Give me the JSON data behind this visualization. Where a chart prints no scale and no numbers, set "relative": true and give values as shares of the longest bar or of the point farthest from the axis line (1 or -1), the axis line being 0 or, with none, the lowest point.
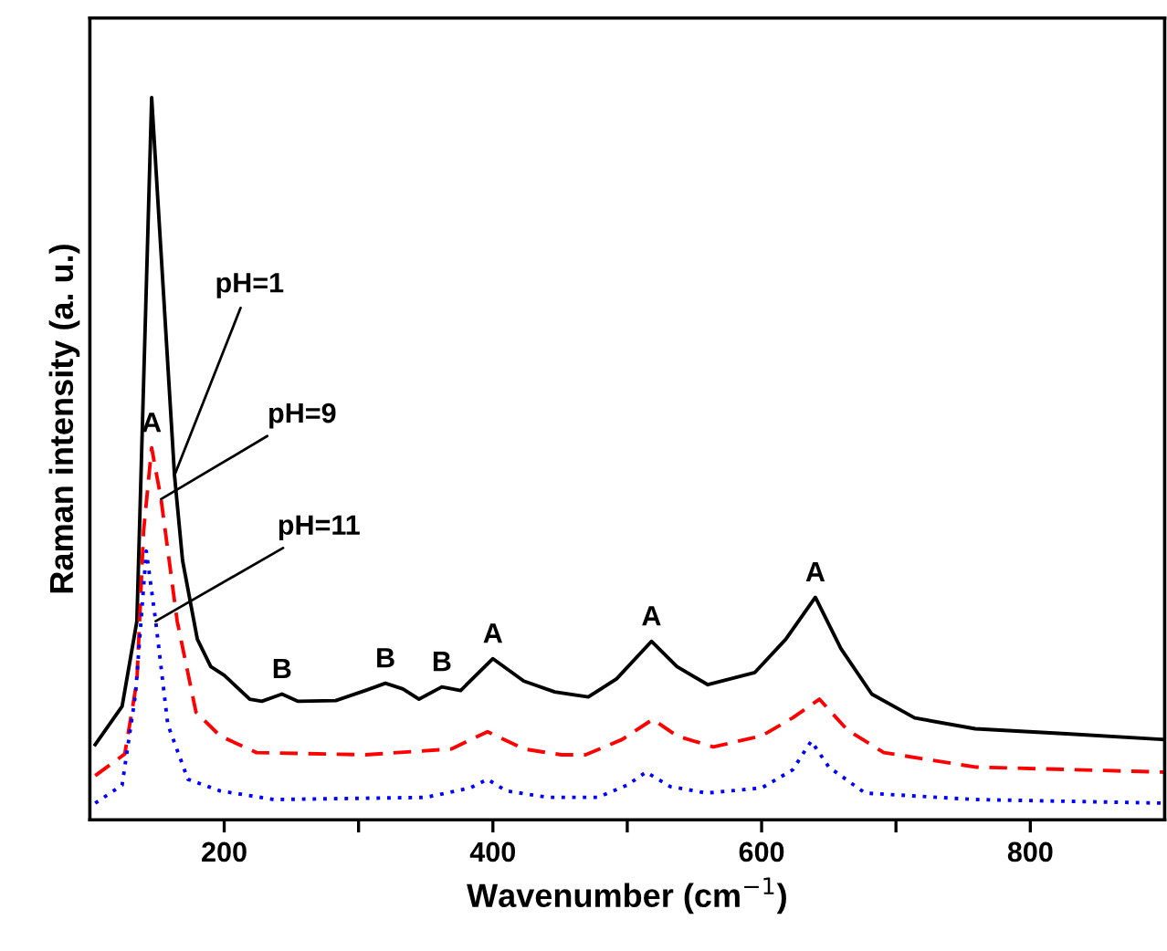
{
  "chart_data": {
    "type": "line",
    "relative": true,
    "xlabel": "Wavenumber (cm$^{−1}$)",
    "ylabel": "Raman intensity (a. u.)",
    "xlim": [
      100,
      900
    ],
    "xticks": [
      200,
      {
        "value": 300,
        "label": null
      },
      400,
      {
        "value": 500,
        "label": null
      },
      600,
      {
        "value": 700,
        "label": null
      },
      800
    ],
    "tick_labels": "x",
    "grid": false,
    "legend": false,
    "marker": "none",
    "series": [
      {
        "name": "pH=1",
        "color": "#000000",
        "line_style": "solid",
        "x": [
          104,
          124,
          135,
          146,
          163,
          169,
          180,
          190,
          200,
          219,
          228,
          243,
          255,
          283,
          305,
          320,
          333,
          345,
          362,
          376,
          400,
          423,
          446,
          471,
          492,
          518,
          537,
          560,
          595,
          618,
          640,
          659,
          682,
          714,
          759,
          827,
          900
        ],
        "values": [
          0.104,
          0.157,
          0.275,
          1.0,
          0.477,
          0.359,
          0.25,
          0.212,
          0.2,
          0.167,
          0.164,
          0.174,
          0.164,
          0.165,
          0.179,
          0.189,
          0.181,
          0.167,
          0.184,
          0.179,
          0.223,
          0.192,
          0.177,
          0.17,
          0.195,
          0.247,
          0.212,
          0.187,
          0.204,
          0.25,
          0.308,
          0.237,
          0.174,
          0.141,
          0.126,
          0.119,
          0.111
        ]
      },
      {
        "name": "pH=9",
        "color": "#ff0000",
        "line_style": "dashed",
        "x": [
          104,
          126,
          135,
          140,
          146,
          153,
          165,
          179,
          197,
          224,
          305,
          369,
          396,
          423,
          451,
          469,
          496,
          519,
          537,
          564,
          600,
          623,
          643,
          664,
          691,
          759,
          900
        ],
        "values": [
          0.061,
          0.091,
          0.192,
          0.4,
          0.515,
          0.444,
          0.275,
          0.149,
          0.116,
          0.093,
          0.09,
          0.098,
          0.122,
          0.098,
          0.09,
          0.09,
          0.111,
          0.139,
          0.116,
          0.101,
          0.116,
          0.141,
          0.167,
          0.124,
          0.093,
          0.073,
          0.066
        ]
      },
      {
        "name": "pH=11",
        "color": "#0000ff",
        "line_style": "dotted",
        "x": [
          104,
          124,
          134,
          142,
          149,
          158,
          173,
          197,
          237,
          350,
          383,
          396,
          410,
          441,
          478,
          500,
          514,
          532,
          559,
          600,
          623,
          637,
          650,
          677,
          759,
          900
        ],
        "values": [
          0.023,
          0.048,
          0.174,
          0.372,
          0.275,
          0.132,
          0.056,
          0.04,
          0.028,
          0.031,
          0.044,
          0.056,
          0.04,
          0.031,
          0.031,
          0.048,
          0.066,
          0.046,
          0.037,
          0.044,
          0.069,
          0.109,
          0.073,
          0.037,
          0.028,
          0.023
        ]
      }
    ],
    "annotations": [
      {
        "text": "A",
        "x": 146,
        "y": 0.515
      },
      {
        "text": "B",
        "x": 243,
        "y": 0.174
      },
      {
        "text": "B",
        "x": 320,
        "y": 0.189
      },
      {
        "text": "B",
        "x": 362,
        "y": 0.184
      },
      {
        "text": "A",
        "x": 400,
        "y": 0.223
      },
      {
        "text": "A",
        "x": 518,
        "y": 0.247
      },
      {
        "text": "A",
        "x": 640,
        "y": 0.308
      }
    ]
  }
}
